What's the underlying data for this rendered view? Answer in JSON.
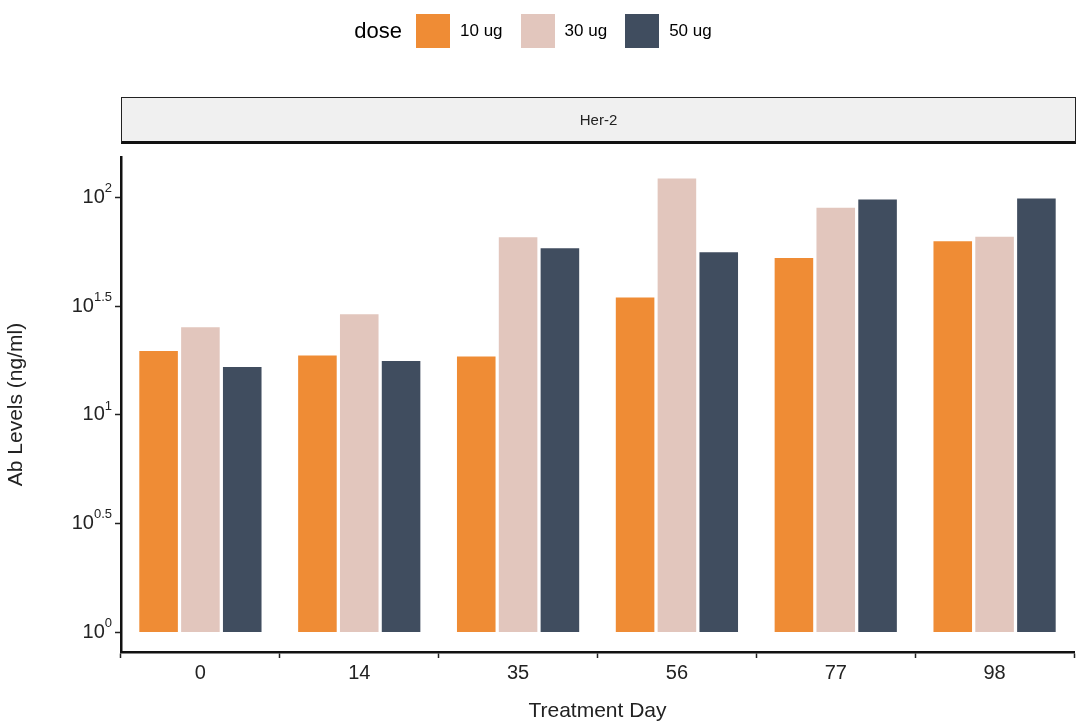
{
  "chart_data": {
    "type": "bar",
    "title": "Her-2",
    "xlabel": "Treatment Day",
    "ylabel": "Ab Levels (ng/ml)",
    "legend_title": "dose",
    "legend": "top",
    "log": true,
    "grid": false,
    "categories": [
      "0",
      "14",
      "35",
      "56",
      "77",
      "98"
    ],
    "ylim": [
      0.81,
      154
    ],
    "yticks": [
      {
        "value": 1,
        "label": "10$^{0}$"
      },
      {
        "value": 3.162,
        "label": "10$^{0.5}$"
      },
      {
        "value": 10,
        "label": "10$^{1}$"
      },
      {
        "value": 31.62,
        "label": "10$^{1.5}$"
      },
      {
        "value": 100,
        "label": "10$^{2}$"
      }
    ],
    "series": [
      {
        "name": "10 ug",
        "color": "#ef8c35",
        "base": [
          1,
          1,
          1,
          1,
          1,
          1
        ],
        "values": [
          18.9,
          18.0,
          17.8,
          34.1,
          52.3,
          62.7
        ]
      },
      {
        "name": "30 ug",
        "color": "#e2c6bd",
        "base": [
          1,
          1,
          1,
          1,
          1,
          1
        ],
        "values": [
          24.6,
          28.4,
          65.4,
          122.8,
          89.8,
          65.9
        ]
      },
      {
        "name": "50 ug",
        "color": "#404d5f",
        "base": [
          1,
          1,
          1,
          1,
          1,
          1
        ],
        "values": [
          15.8,
          16.9,
          58.1,
          55.7,
          98.3,
          99.3
        ]
      }
    ]
  }
}
